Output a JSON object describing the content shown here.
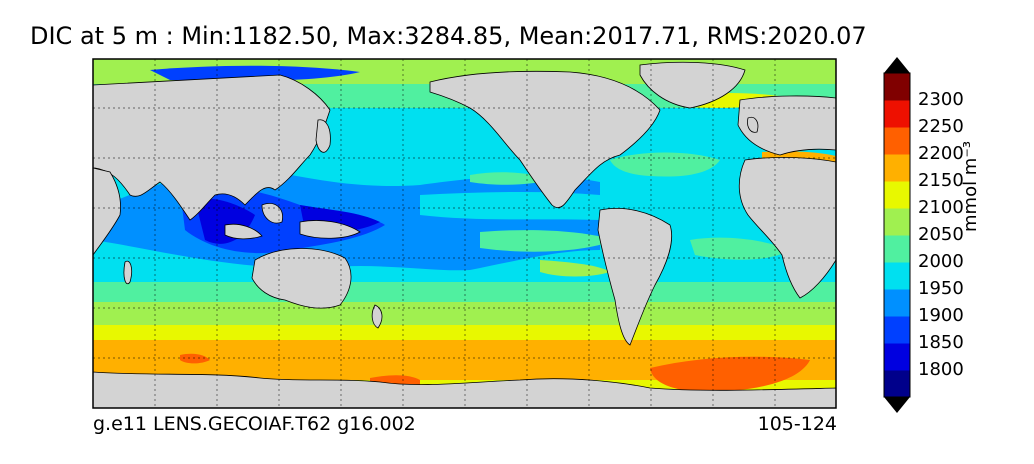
{
  "title": "DIC at 5 m : Min:1182.50, Max:3284.85, Mean:2017.71, RMS:2020.07",
  "footer": {
    "left": "g.e11 LENS.GECOIAF.T62 g16.002",
    "right": "105-124"
  },
  "colorbar": {
    "unit": "mmol m⁻³",
    "tick_labels": [
      "1800",
      "1850",
      "1900",
      "1950",
      "2000",
      "2050",
      "2100",
      "2150",
      "2200",
      "2250",
      "2300"
    ],
    "colors": [
      "#00008b",
      "#0000e0",
      "#0040ff",
      "#0090ff",
      "#00e0f0",
      "#50f0a0",
      "#a0f050",
      "#e8f800",
      "#ffb000",
      "#ff6000",
      "#ee1000",
      "#800000"
    ]
  },
  "colors": {
    "land": "#d3d3d3",
    "border": "#000000",
    "background": "#ffffff"
  }
}
